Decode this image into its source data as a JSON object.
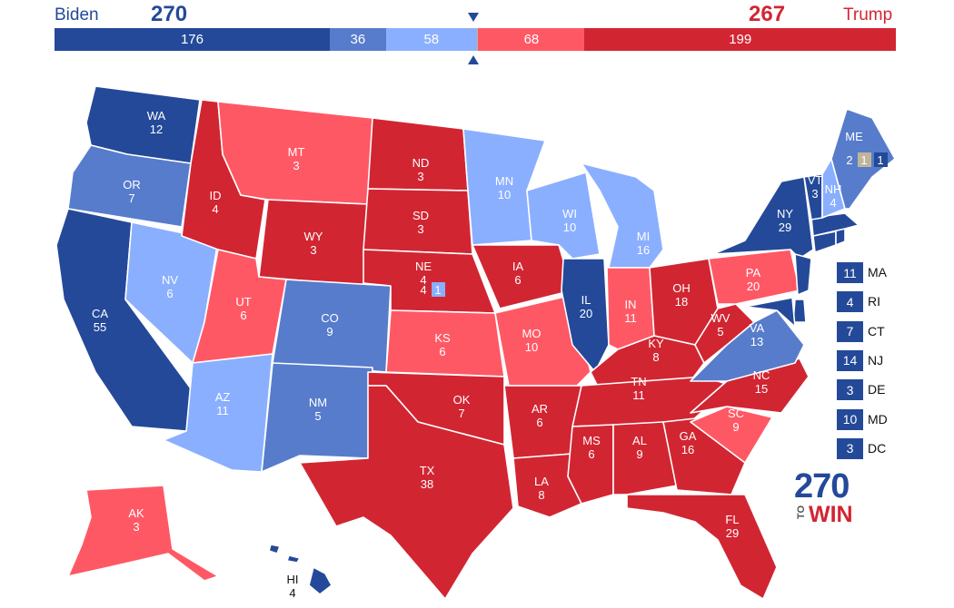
{
  "colors": {
    "safe_d": "#244999",
    "likely_d": "#577CCC",
    "lean_d": "#8AAFFF",
    "tossup": "#BFB69A",
    "lean_r": "#FF5865",
    "likely_r": "#FF5865",
    "safe_r": "#D22532",
    "biden_text": "#244999",
    "trump_text": "#D22532"
  },
  "header": {
    "biden_name": "Biden",
    "biden_total": "270",
    "trump_name": "Trump",
    "trump_total": "267"
  },
  "bar": [
    {
      "value": 176,
      "label": "176",
      "color": "#244999"
    },
    {
      "value": 36,
      "label": "36",
      "color": "#577CCC"
    },
    {
      "value": 58,
      "label": "58",
      "color": "#8AAFFF"
    },
    {
      "value": 1,
      "label": "",
      "color": "#BFB69A"
    },
    {
      "value": 68,
      "label": "68",
      "color": "#FF5865"
    },
    {
      "value": 199,
      "label": "199",
      "color": "#D22532"
    }
  ],
  "states": [
    {
      "code": "WA",
      "ev": "12",
      "color": "#244999"
    },
    {
      "code": "OR",
      "ev": "7",
      "color": "#577CCC"
    },
    {
      "code": "CA",
      "ev": "55",
      "color": "#244999"
    },
    {
      "code": "NV",
      "ev": "6",
      "color": "#8AAFFF"
    },
    {
      "code": "ID",
      "ev": "4",
      "color": "#D22532"
    },
    {
      "code": "MT",
      "ev": "3",
      "color": "#FF5865"
    },
    {
      "code": "WY",
      "ev": "3",
      "color": "#D22532"
    },
    {
      "code": "UT",
      "ev": "6",
      "color": "#FF5865"
    },
    {
      "code": "AZ",
      "ev": "11",
      "color": "#8AAFFF"
    },
    {
      "code": "CO",
      "ev": "9",
      "color": "#577CCC"
    },
    {
      "code": "NM",
      "ev": "5",
      "color": "#577CCC"
    },
    {
      "code": "ND",
      "ev": "3",
      "color": "#D22532"
    },
    {
      "code": "SD",
      "ev": "3",
      "color": "#D22532"
    },
    {
      "code": "NE",
      "ev": "4",
      "color": "#D22532"
    },
    {
      "code": "KS",
      "ev": "6",
      "color": "#FF5865"
    },
    {
      "code": "OK",
      "ev": "7",
      "color": "#D22532"
    },
    {
      "code": "TX",
      "ev": "38",
      "color": "#D22532"
    },
    {
      "code": "MN",
      "ev": "10",
      "color": "#8AAFFF"
    },
    {
      "code": "IA",
      "ev": "6",
      "color": "#D22532"
    },
    {
      "code": "MO",
      "ev": "10",
      "color": "#FF5865"
    },
    {
      "code": "AR",
      "ev": "6",
      "color": "#D22532"
    },
    {
      "code": "LA",
      "ev": "8",
      "color": "#D22532"
    },
    {
      "code": "WI",
      "ev": "10",
      "color": "#8AAFFF"
    },
    {
      "code": "IL",
      "ev": "20",
      "color": "#244999"
    },
    {
      "code": "MI",
      "ev": "16",
      "color": "#8AAFFF"
    },
    {
      "code": "IN",
      "ev": "11",
      "color": "#FF5865"
    },
    {
      "code": "OH",
      "ev": "18",
      "color": "#D22532"
    },
    {
      "code": "KY",
      "ev": "8",
      "color": "#D22532"
    },
    {
      "code": "TN",
      "ev": "11",
      "color": "#D22532"
    },
    {
      "code": "MS",
      "ev": "6",
      "color": "#D22532"
    },
    {
      "code": "AL",
      "ev": "9",
      "color": "#D22532"
    },
    {
      "code": "GA",
      "ev": "16",
      "color": "#D22532"
    },
    {
      "code": "FL",
      "ev": "29",
      "color": "#D22532"
    },
    {
      "code": "SC",
      "ev": "9",
      "color": "#FF5865"
    },
    {
      "code": "NC",
      "ev": "15",
      "color": "#D22532"
    },
    {
      "code": "VA",
      "ev": "13",
      "color": "#577CCC"
    },
    {
      "code": "WV",
      "ev": "5",
      "color": "#D22532"
    },
    {
      "code": "PA",
      "ev": "20",
      "color": "#FF5865"
    },
    {
      "code": "NY",
      "ev": "29",
      "color": "#244999"
    },
    {
      "code": "VT",
      "ev": "3",
      "color": "#244999"
    },
    {
      "code": "NH",
      "ev": "4",
      "color": "#8AAFFF"
    },
    {
      "code": "ME",
      "ev": "",
      "color": "#577CCC"
    },
    {
      "code": "AK",
      "ev": "3",
      "color": "#FF5865"
    },
    {
      "code": "HI",
      "ev": "4",
      "color": "#244999"
    }
  ],
  "small_states": [
    {
      "ev": "11",
      "code": "MA",
      "color": "#244999"
    },
    {
      "ev": "4",
      "code": "RI",
      "color": "#244999"
    },
    {
      "ev": "7",
      "code": "CT",
      "color": "#244999"
    },
    {
      "ev": "14",
      "code": "NJ",
      "color": "#244999"
    },
    {
      "ev": "3",
      "code": "DE",
      "color": "#244999"
    },
    {
      "ev": "10",
      "code": "MD",
      "color": "#244999"
    },
    {
      "ev": "3",
      "code": "DC",
      "color": "#244999"
    }
  ],
  "maine": {
    "at_large": "2",
    "cd1": "1",
    "cd2": "1"
  },
  "nebraska": {
    "at_large": "4",
    "cd2": "1"
  },
  "logo": {
    "number": "270",
    "prefix": "TO",
    "word": "WIN"
  }
}
